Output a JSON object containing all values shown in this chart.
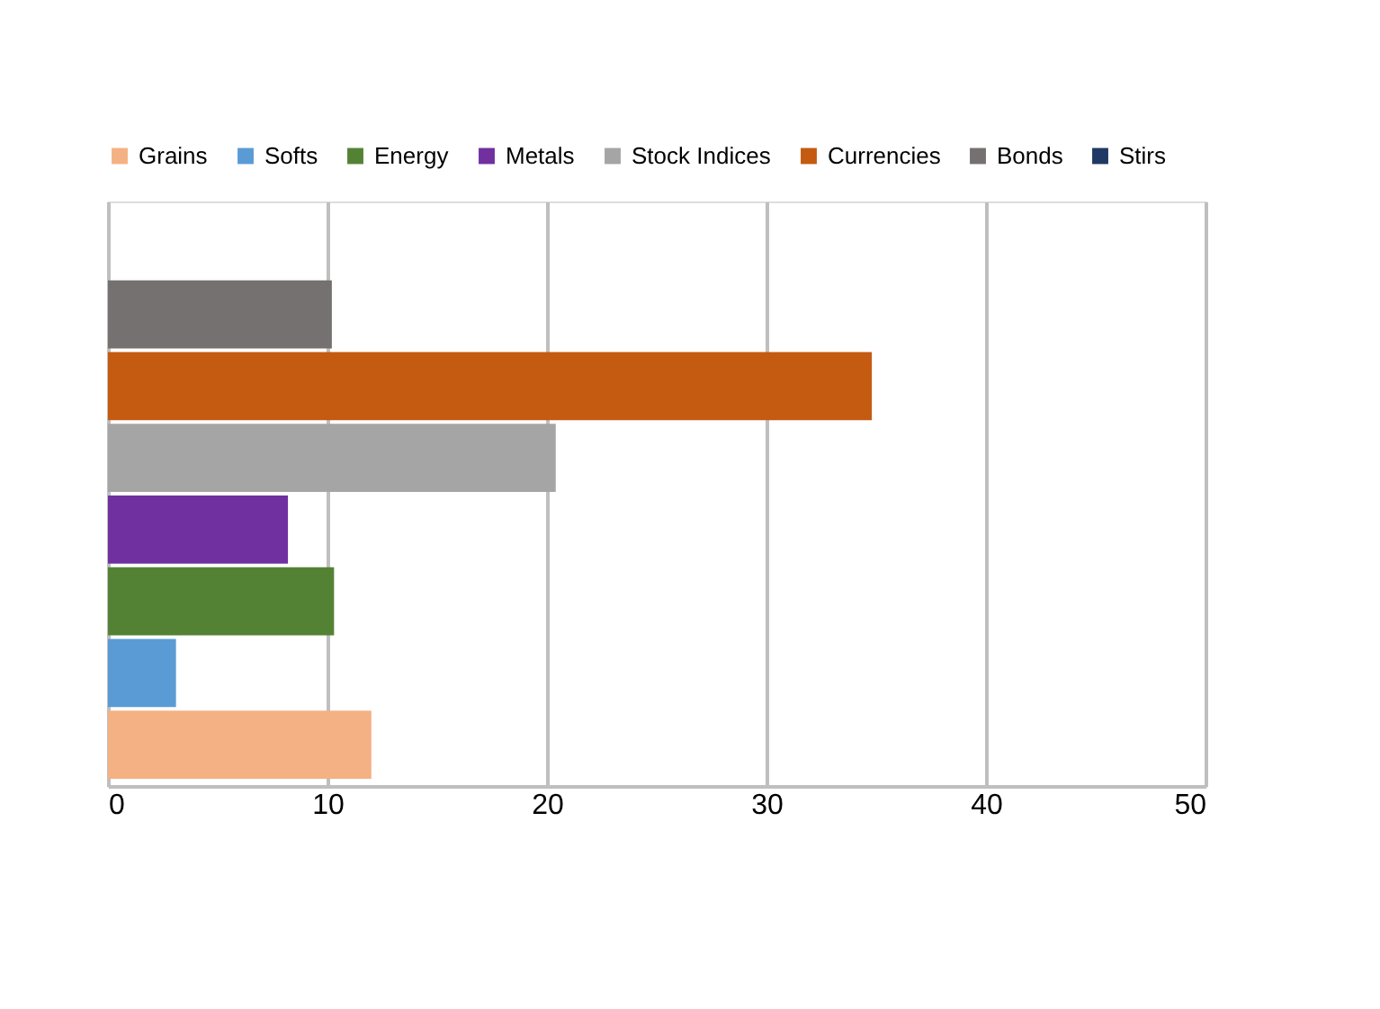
{
  "chart_data": {
    "type": "bar",
    "orientation": "horizontal",
    "categories": [
      null
    ],
    "series": [
      {
        "name": "Grains",
        "color": "#f4b183",
        "values": [
          12.0
        ]
      },
      {
        "name": "Softs",
        "color": "#5b9bd5",
        "values": [
          3.1
        ]
      },
      {
        "name": "Energy",
        "color": "#548235",
        "values": [
          10.3
        ]
      },
      {
        "name": "Metals",
        "color": "#7030a0",
        "values": [
          8.2
        ]
      },
      {
        "name": "Stock Indices",
        "color": "#a5a5a5",
        "values": [
          20.4
        ]
      },
      {
        "name": "Currencies",
        "color": "#c55a11",
        "values": [
          34.8
        ]
      },
      {
        "name": "Bonds",
        "color": "#767171",
        "values": [
          10.2
        ]
      },
      {
        "name": "Stirs",
        "color": "#203864",
        "values": [
          0
        ]
      }
    ],
    "xlim": [
      0,
      50
    ],
    "xticks": [
      0,
      10,
      20,
      30,
      40,
      50
    ],
    "grid": "x",
    "legend": "top"
  }
}
